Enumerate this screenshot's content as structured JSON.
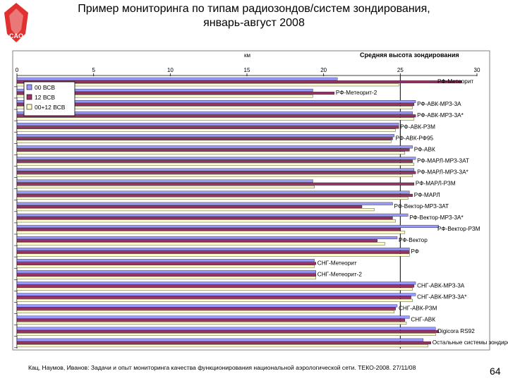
{
  "slide": {
    "title_line1": "Пример мониторинга по типам радиозондов/систем зондирования,",
    "title_line2": "январь-август 2008",
    "footer": "Кац, Наумов, Иванов: Задачи и опыт мониторинга качества функционирования национальной аэрологической сети. ТЕКО-2008. 27/11/08",
    "page_number": "64",
    "logo_text": "CAO"
  },
  "colors": {
    "series_00": "#9999ff",
    "series_12": "#993366",
    "series_0012": "#ffffcc",
    "frame": "#808080",
    "grid": "#000000"
  },
  "chart_data": {
    "type": "bar",
    "orientation": "horizontal",
    "title": "Средняя высота зондирования",
    "unit_label": "км",
    "xlim": [
      0,
      30
    ],
    "xticks": [
      0,
      5,
      10,
      15,
      20,
      25,
      30
    ],
    "reference_line": 25,
    "legend": [
      "00 ВСВ",
      "12 ВСВ",
      "00+12 ВСВ"
    ],
    "categories": [
      "РФ-Метеорит",
      "РФ-Метеорит-2",
      "РФ-АВК-МРЗ-3А",
      "РФ-АВК-МРЗ-3А*",
      "РФ-АВК-РЗМ",
      "РФ-АВК-РФ95",
      "РФ-АВК",
      "РФ-МАРЛ-МРЗ-3АТ",
      "РФ-МАРЛ-МРЗ-3А*",
      "РФ-МАРЛ-РЗМ",
      "РФ-МАРЛ",
      "РФ-Вектор-МРЗ-3АТ",
      "РФ-Вектор-МРЗ-3А*",
      "РФ-Вектор-РЗМ",
      "РФ-Вектор",
      "РФ",
      "СНГ-Метеорит",
      "СНГ-Метеорит-2",
      "СНГ-АВК-МРЗ-3А",
      "СНГ-АВК-МРЗ-3А*",
      "СНГ-АВК-РЗМ",
      "СНГ-АВК",
      "Digicora RS92",
      "Остальные системы зондирования"
    ],
    "series": [
      {
        "name": "00 ВСВ",
        "values": [
          20.9,
          19.3,
          26.0,
          25.8,
          24.9,
          24.6,
          25.8,
          26.0,
          25.9,
          19.3,
          25.6,
          24.5,
          25.5,
          27.5,
          24.8,
          25.6,
          19.4,
          19.5,
          26.0,
          26.0,
          24.8,
          25.6,
          27.3,
          26.5
        ]
      },
      {
        "name": "12 ВСВ",
        "values": [
          29.0,
          20.7,
          25.9,
          26.0,
          24.9,
          24.5,
          25.6,
          25.8,
          26.0,
          25.9,
          25.8,
          22.5,
          24.5,
          25.0,
          23.5,
          25.6,
          19.5,
          19.5,
          25.9,
          25.7,
          24.7,
          25.3,
          27.5,
          27.0
        ]
      },
      {
        "name": "00+12 ВСВ",
        "values": [
          24.9,
          19.3,
          25.8,
          25.9,
          24.7,
          24.4,
          25.3,
          25.9,
          25.8,
          19.4,
          25.5,
          23.3,
          24.7,
          25.3,
          24.0,
          25.6,
          19.4,
          19.5,
          25.8,
          25.8,
          24.6,
          25.4,
          27.3,
          26.8
        ]
      }
    ]
  }
}
